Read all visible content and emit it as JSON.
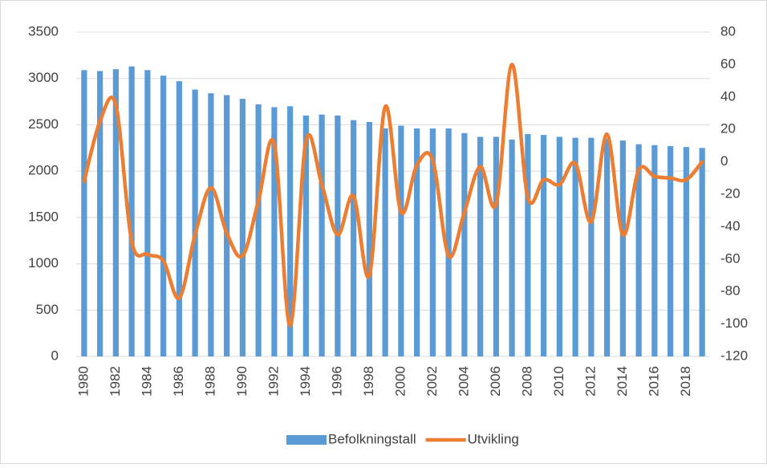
{
  "chart_data": {
    "type": "bar-line",
    "categories": [
      "1980",
      null,
      "1982",
      null,
      "1984",
      null,
      "1986",
      null,
      "1988",
      null,
      "1990",
      null,
      "1992",
      null,
      "1994",
      null,
      "1996",
      null,
      "1998",
      null,
      "2000",
      null,
      "2002",
      null,
      "2004",
      null,
      "2006",
      null,
      "2008",
      null,
      "2010",
      null,
      "2012",
      null,
      "2014",
      null,
      "2016",
      null,
      "2018",
      null
    ],
    "series": [
      {
        "name": "Befolkningstall",
        "color": "#5b9bd5",
        "type": "bar",
        "values": [
          3090,
          3080,
          3100,
          3130,
          3090,
          3030,
          2970,
          2880,
          2840,
          2820,
          2780,
          2720,
          2690,
          2700,
          2600,
          2610,
          2600,
          2550,
          2530,
          2460,
          2490,
          2460,
          2460,
          2460,
          2410,
          2370,
          2370,
          2340,
          2400,
          2390,
          2370,
          2360,
          2360,
          2350,
          2330,
          2290,
          2280,
          2270,
          2260,
          2250
        ]
      },
      {
        "name": "Utvikling",
        "color": "#ed7d31",
        "type": "line",
        "axis": "y2",
        "smooth": true,
        "values": [
          -12,
          25,
          35,
          -49,
          -57,
          -61,
          -84,
          -45,
          -16,
          -44,
          -58,
          -24,
          11,
          -101,
          13,
          -14,
          -45,
          -21,
          -70,
          34,
          -31,
          -2,
          1,
          -58,
          -31,
          -3,
          -26,
          60,
          -22,
          -11,
          -14,
          -1,
          -37,
          17,
          -45,
          -5,
          -9,
          -10,
          -11,
          0
        ]
      }
    ],
    "ylim": [
      0,
      3500
    ],
    "yticks": [
      0,
      500,
      1000,
      1500,
      2000,
      2500,
      3000,
      3500
    ],
    "y2lim": [
      -120,
      80
    ],
    "y2ticks": [
      -120,
      -100,
      -80,
      -60,
      -40,
      -20,
      0,
      20,
      40,
      60,
      80
    ],
    "grid": true,
    "legend": "bottom"
  }
}
